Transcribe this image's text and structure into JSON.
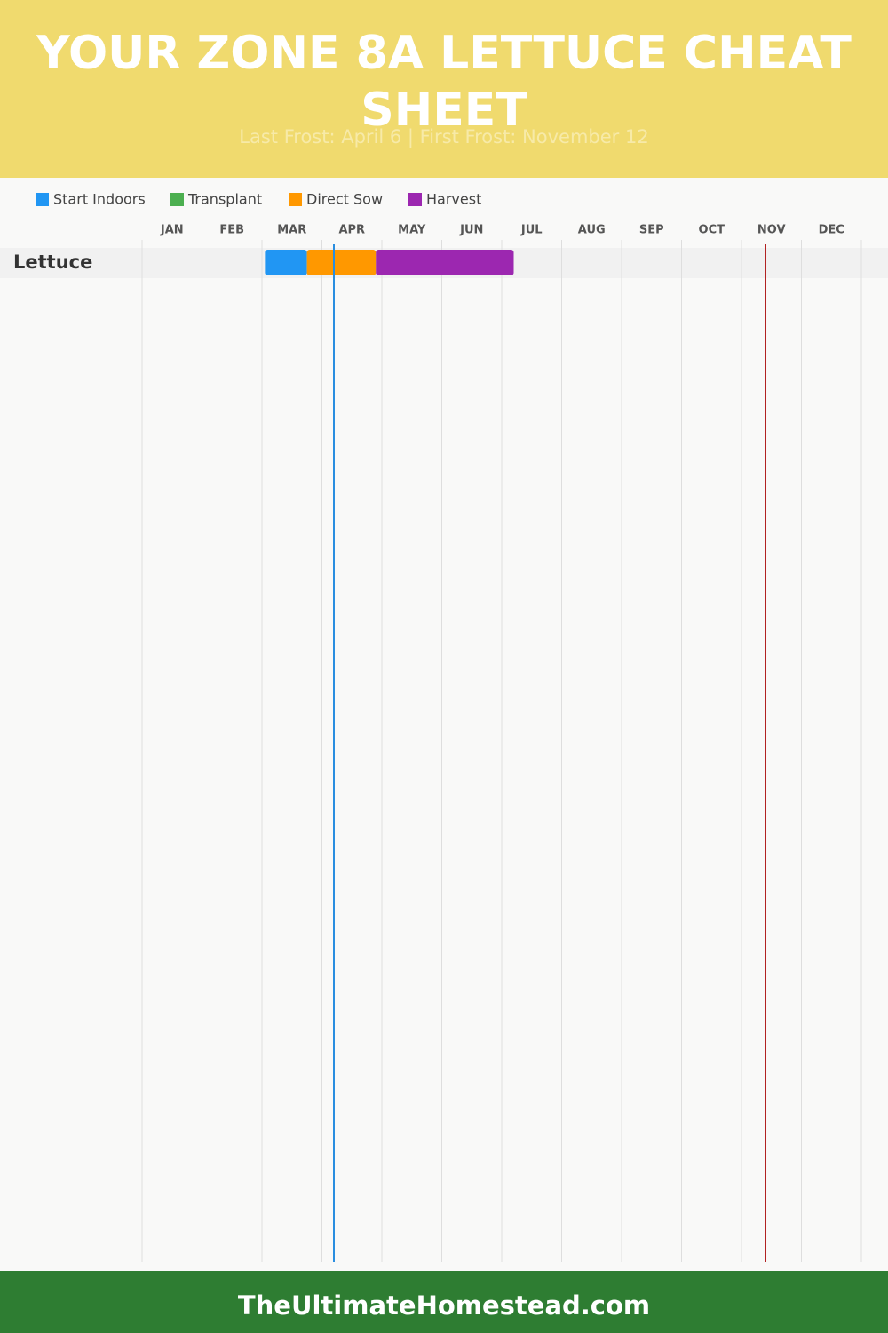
{
  "header": {
    "title": "YOUR ZONE 8A LETTUCE CHEAT SHEET",
    "subtitle": "Last Frost: April 6 | First Frost: November 12"
  },
  "chart_data": {
    "type": "gantt",
    "categories": [
      "JAN",
      "FEB",
      "MAR",
      "APR",
      "MAY",
      "JUN",
      "JUL",
      "AUG",
      "SEP",
      "OCT",
      "NOV",
      "DEC"
    ],
    "xlim": [
      0,
      12
    ],
    "xticks": [
      0,
      1,
      2,
      3,
      4,
      5,
      6,
      7,
      8,
      9,
      10,
      11,
      12
    ],
    "grid": true,
    "series": [
      {
        "name": "Start Indoors",
        "color": "#2196f3"
      },
      {
        "name": "Transplant",
        "color": "#4caf50"
      },
      {
        "name": "Direct Sow",
        "color": "#ff9800"
      },
      {
        "name": "Harvest",
        "color": "#9c27b0"
      }
    ],
    "rows": [
      {
        "label": "Lettuce",
        "segments": [
          {
            "series": 0,
            "start": 2.05,
            "end": 2.75
          },
          {
            "series": 2,
            "start": 2.75,
            "end": 3.9
          },
          {
            "series": 3,
            "start": 3.9,
            "end": 6.2
          }
        ]
      }
    ],
    "markers": [
      {
        "value": 3.2,
        "color": "#2a8ee0"
      },
      {
        "value": 10.4,
        "color": "#b22222"
      }
    ]
  },
  "footer": {
    "text": "TheUltimateHomestead.com"
  }
}
